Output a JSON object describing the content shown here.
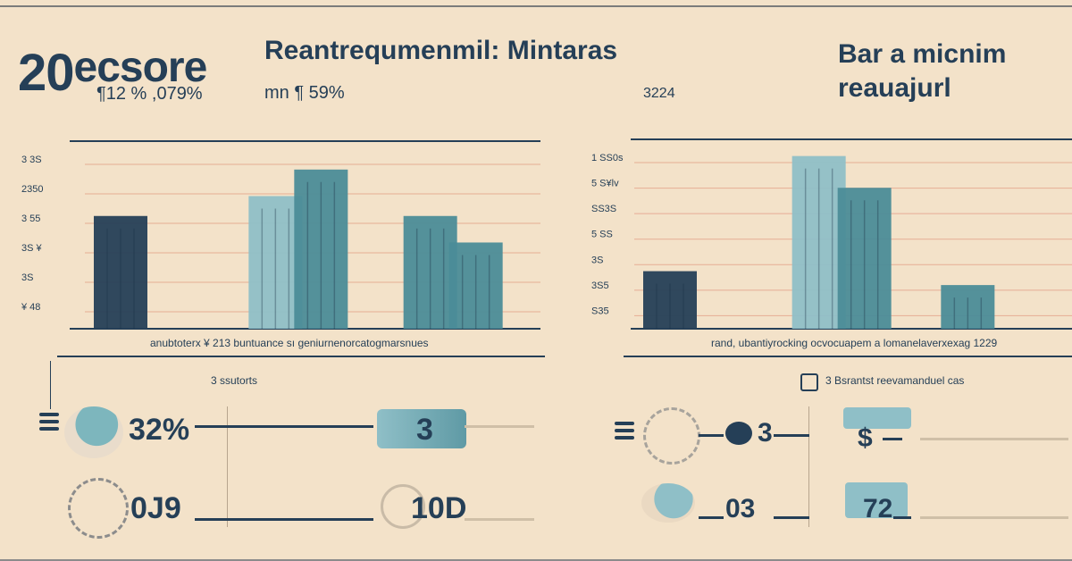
{
  "header": {
    "big_number": "20",
    "title_main": "ecsore",
    "subtitle_left": "¶12 % ,079%",
    "title_mid": "Reantrequmenmil: Mintaras",
    "subtitle_mid": "mn ¶ 59%",
    "tag_right": "3224",
    "title_right_line1": "Bar a micnim",
    "title_right_line2": "reauajurl"
  },
  "captions": {
    "left_chart": "anubtoterx ¥ 213 buntuance sı geniurnenorcatogmarsnues",
    "right_chart": "rand, ubantiyrocking ocvocuapem a lomanelaverxexag 1229",
    "left_stats_label": "3 ssutorts",
    "right_stats_label": "3 Bsrantst reevamanduel  cas"
  },
  "stats": {
    "left_top": "32%",
    "left_bottom": "0J9",
    "mid_top": "3",
    "mid_bottom": "10D",
    "right_top": "3",
    "right_bottom": "03",
    "far_top": "$",
    "far_bottom": "72"
  },
  "colors": {
    "background": "#f3e2c9",
    "navy": "#253f57",
    "teal_dark": "#2f5e6c",
    "teal_mid": "#4b8c98",
    "teal_light": "#8fbfc7",
    "grid": "#e6ad94"
  },
  "chart_data": [
    {
      "type": "bar",
      "title": "",
      "xlabel": "",
      "ylabel": "",
      "y_tick_labels": [
        "3 3S",
        "2350",
        "3 55",
        "3S ¥",
        "3S",
        "¥ 48"
      ],
      "categories": [
        "",
        "",
        ""
      ],
      "series": [
        {
          "values": [
            5.1,
            0.0,
            0.0
          ]
        },
        {
          "values": [
            0.0,
            6.0,
            0.0
          ]
        },
        {
          "values": [
            0.0,
            7.2,
            5.1
          ]
        },
        {
          "values": [
            0.0,
            0.0,
            3.9
          ]
        }
      ],
      "ylim": [
        0,
        8
      ],
      "grid": true,
      "legend": "none"
    },
    {
      "type": "bar",
      "title": "",
      "xlabel": "",
      "ylabel": "",
      "y_tick_labels": [
        "1 SS0s",
        "5 S¥lv",
        "SS3S",
        "5 SS",
        "3S",
        "3S5",
        "S35"
      ],
      "categories": [
        "",
        "",
        ""
      ],
      "series": [
        {
          "values": [
            2.9,
            0.0,
            0.0
          ]
        },
        {
          "values": [
            0.0,
            8.7,
            0.0
          ]
        },
        {
          "values": [
            0.0,
            7.1,
            0.0
          ]
        },
        {
          "values": [
            0.0,
            0.0,
            2.2
          ]
        }
      ],
      "ylim": [
        0,
        9
      ],
      "grid": true,
      "legend": "none"
    }
  ]
}
